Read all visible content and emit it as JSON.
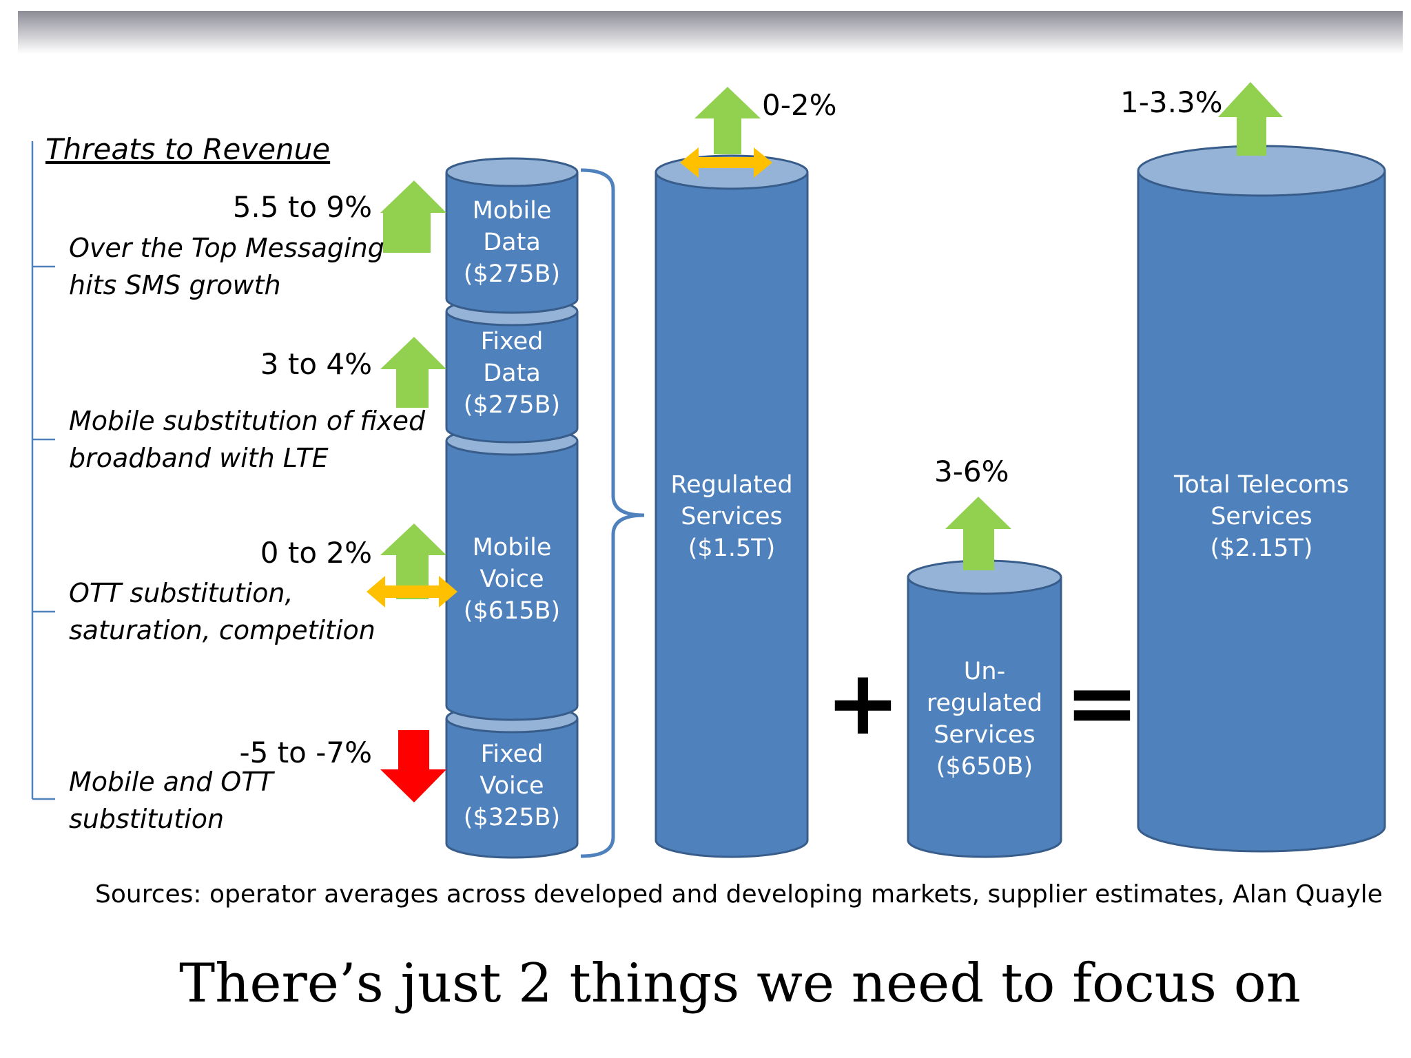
{
  "threats_heading": "Threats to Revenue",
  "segments": [
    {
      "id": "mobile-data",
      "label": "Mobile Data ($275B)",
      "growth": "5.5 to 9%",
      "direction": "up",
      "threat": "Over the Top Messaging hits SMS growth"
    },
    {
      "id": "fixed-data",
      "label": "Fixed Data ($275B)",
      "growth": "3 to 4%",
      "direction": "up",
      "threat": "Mobile substitution of fixed broadband with LTE"
    },
    {
      "id": "mobile-voice",
      "label": "Mobile Voice ($615B)",
      "growth": "0 to 2%",
      "direction": "up-flat",
      "threat": "OTT substitution, saturation, competition"
    },
    {
      "id": "fixed-voice",
      "label": "Fixed Voice ($325B)",
      "growth": "-5 to -7%",
      "direction": "down",
      "threat": "Mobile and OTT substitution"
    }
  ],
  "regulated": {
    "label": "Regulated Services ($1.5T)",
    "growth": "0-2%",
    "direction": "up-flat"
  },
  "operator_plus": "+",
  "unregulated": {
    "label": "Un-regulated Services ($650B)",
    "growth": "3-6%",
    "direction": "up"
  },
  "operator_equals": "=",
  "total": {
    "label": "Total Telecoms Services ($2.15T)",
    "growth": "1-3.3%",
    "direction": "up"
  },
  "sources": "Sources: operator averages across developed and developing markets, supplier estimates, Alan Quayle",
  "caption": "There’s just 2 things we need to focus on",
  "colors": {
    "cylinder_body": "#4f81bd",
    "cylinder_top": "#95b3d7",
    "cylinder_edge": "#385d8a",
    "arrow_up": "#92d050",
    "arrow_down": "#ff0000",
    "arrow_flat": "#ffc000",
    "bracket": "#4f81bd"
  }
}
